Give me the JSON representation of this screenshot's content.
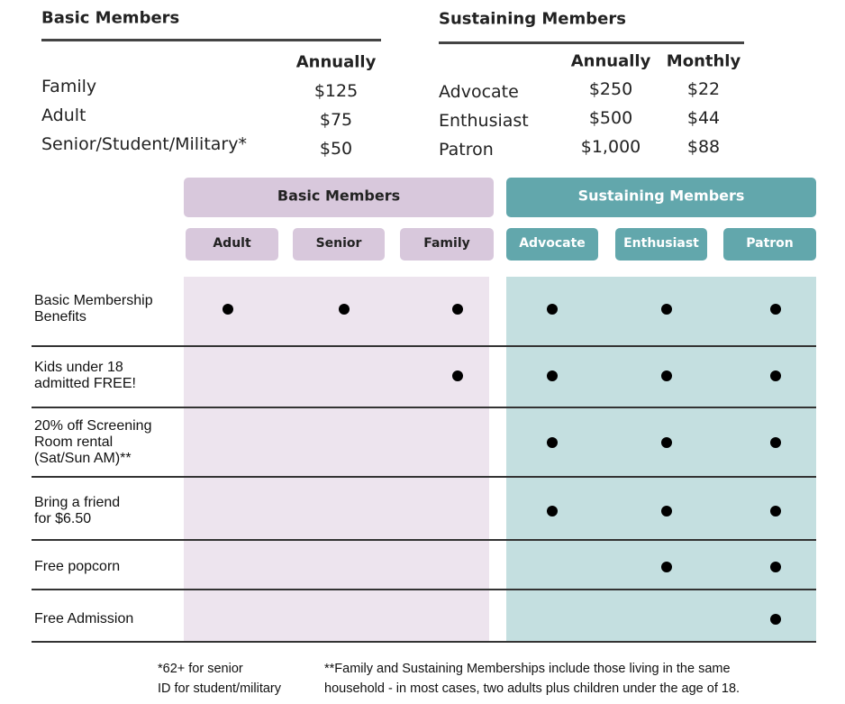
{
  "basic": {
    "title": "Basic Members",
    "column_header": "Annually",
    "rows": [
      {
        "label": "Family",
        "annually": "$125"
      },
      {
        "label": "Adult",
        "annually": "$75"
      },
      {
        "label": "Senior/Student/Military*",
        "annually": "$50"
      }
    ]
  },
  "sustaining": {
    "title": "Sustaining Members",
    "column_headers": [
      "Annually",
      "Monthly"
    ],
    "rows": [
      {
        "label": "Advocate",
        "annually": "$250",
        "monthly": "$22"
      },
      {
        "label": "Enthusiast",
        "annually": "$500",
        "monthly": "$44"
      },
      {
        "label": "Patron",
        "annually": "$1,000",
        "monthly": "$88"
      }
    ]
  },
  "table": {
    "groups": [
      {
        "title": "Basic Members",
        "columns": [
          "Adult",
          "Senior",
          "Family"
        ]
      },
      {
        "title": "Sustaining Members",
        "columns": [
          "Advocate",
          "Enthusiast",
          "Patron"
        ]
      }
    ],
    "rows": [
      {
        "label": [
          "Basic Membership",
          "Benefits"
        ],
        "included": [
          true,
          true,
          true,
          true,
          true,
          true
        ]
      },
      {
        "label": [
          "Kids under 18",
          "admitted FREE!"
        ],
        "included": [
          false,
          false,
          true,
          true,
          true,
          true
        ]
      },
      {
        "label": [
          "20% off Screening",
          "Room rental",
          "(Sat/Sun AM)**"
        ],
        "included": [
          false,
          false,
          false,
          true,
          true,
          true
        ]
      },
      {
        "label": [
          "Bring a friend",
          "for $6.50"
        ],
        "included": [
          false,
          false,
          false,
          true,
          true,
          true
        ]
      },
      {
        "label": [
          "Free popcorn"
        ],
        "included": [
          false,
          false,
          false,
          false,
          true,
          true
        ]
      },
      {
        "label": [
          "Free Admission"
        ],
        "included": [
          false,
          false,
          false,
          false,
          false,
          true
        ]
      }
    ]
  },
  "footnotes": [
    [
      "*62+ for senior",
      "ID for student/military"
    ],
    [
      "**Family and Sustaining Memberships include those living in the same",
      "household - in most cases, two adults plus children under the age of 18."
    ]
  ]
}
